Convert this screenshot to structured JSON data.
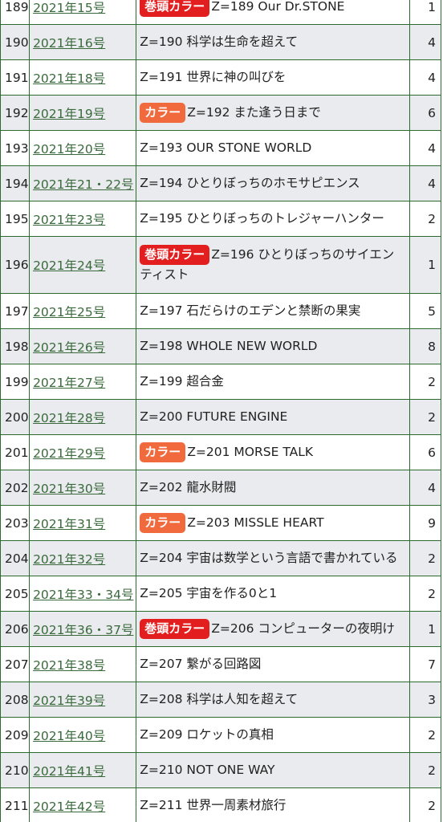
{
  "badges": {
    "kantou": {
      "label": "巻頭カラー",
      "color": "#e31e1e"
    },
    "color": {
      "label": "カラー",
      "color": "#f16a3e"
    }
  },
  "rows": [
    {
      "no": "189",
      "issue": "2021年15号",
      "badge": "kantou",
      "title": "Z=189 Our Dr.STONE",
      "count": "1"
    },
    {
      "no": "190",
      "issue": "2021年16号",
      "badge": "",
      "title": "Z=190 科学は生命を超えて",
      "count": "4"
    },
    {
      "no": "191",
      "issue": "2021年18号",
      "badge": "",
      "title": "Z=191 世界に神の叫びを",
      "count": "4"
    },
    {
      "no": "192",
      "issue": "2021年19号",
      "badge": "color",
      "title": "Z=192 また逢う日まで",
      "count": "6"
    },
    {
      "no": "193",
      "issue": "2021年20号",
      "badge": "",
      "title": "Z=193 OUR STONE WORLD",
      "count": "4"
    },
    {
      "no": "194",
      "issue": "2021年21・22号",
      "badge": "",
      "title": "Z=194 ひとりぼっちのホモサピエンス",
      "count": "4"
    },
    {
      "no": "195",
      "issue": "2021年23号",
      "badge": "",
      "title": "Z=195 ひとりぼっちのトレジャーハンター",
      "count": "2"
    },
    {
      "no": "196",
      "issue": "2021年24号",
      "badge": "kantou",
      "title": "Z=196 ひとりぼっちのサイエンティスト",
      "count": "1"
    },
    {
      "no": "197",
      "issue": "2021年25号",
      "badge": "",
      "title": "Z=197 石だらけのエデンと禁断の果実",
      "count": "5"
    },
    {
      "no": "198",
      "issue": "2021年26号",
      "badge": "",
      "title": "Z=198 WHOLE NEW WORLD",
      "count": "8"
    },
    {
      "no": "199",
      "issue": "2021年27号",
      "badge": "",
      "title": "Z=199 超合金",
      "count": "2"
    },
    {
      "no": "200",
      "issue": "2021年28号",
      "badge": "",
      "title": "Z=200 FUTURE ENGINE",
      "count": "2"
    },
    {
      "no": "201",
      "issue": "2021年29号",
      "badge": "color",
      "title": "Z=201 MORSE TALK",
      "count": "6"
    },
    {
      "no": "202",
      "issue": "2021年30号",
      "badge": "",
      "title": "Z=202 龍水財閥",
      "count": "4"
    },
    {
      "no": "203",
      "issue": "2021年31号",
      "badge": "color",
      "title": "Z=203 MISSLE HEART",
      "count": "9"
    },
    {
      "no": "204",
      "issue": "2021年32号",
      "badge": "",
      "title": "Z=204 宇宙は数学という言語で書かれている",
      "count": "2"
    },
    {
      "no": "205",
      "issue": "2021年33・34号",
      "badge": "",
      "title": "Z=205 宇宙を作る0と1",
      "count": "2"
    },
    {
      "no": "206",
      "issue": "2021年36・37号",
      "badge": "kantou",
      "title": "Z=206 コンピューターの夜明け",
      "count": "1"
    },
    {
      "no": "207",
      "issue": "2021年38号",
      "badge": "",
      "title": "Z=207 繋がる回路図",
      "count": "7"
    },
    {
      "no": "208",
      "issue": "2021年39号",
      "badge": "",
      "title": "Z=208 科学は人知を超えて",
      "count": "3"
    },
    {
      "no": "209",
      "issue": "2021年40号",
      "badge": "",
      "title": "Z=209 ロケットの真相",
      "count": "2"
    },
    {
      "no": "210",
      "issue": "2021年41号",
      "badge": "",
      "title": "Z=210 NOT ONE WAY",
      "count": "2"
    },
    {
      "no": "211",
      "issue": "2021年42号",
      "badge": "",
      "title": "Z=211 世界一周素材旅行",
      "count": "2"
    }
  ]
}
